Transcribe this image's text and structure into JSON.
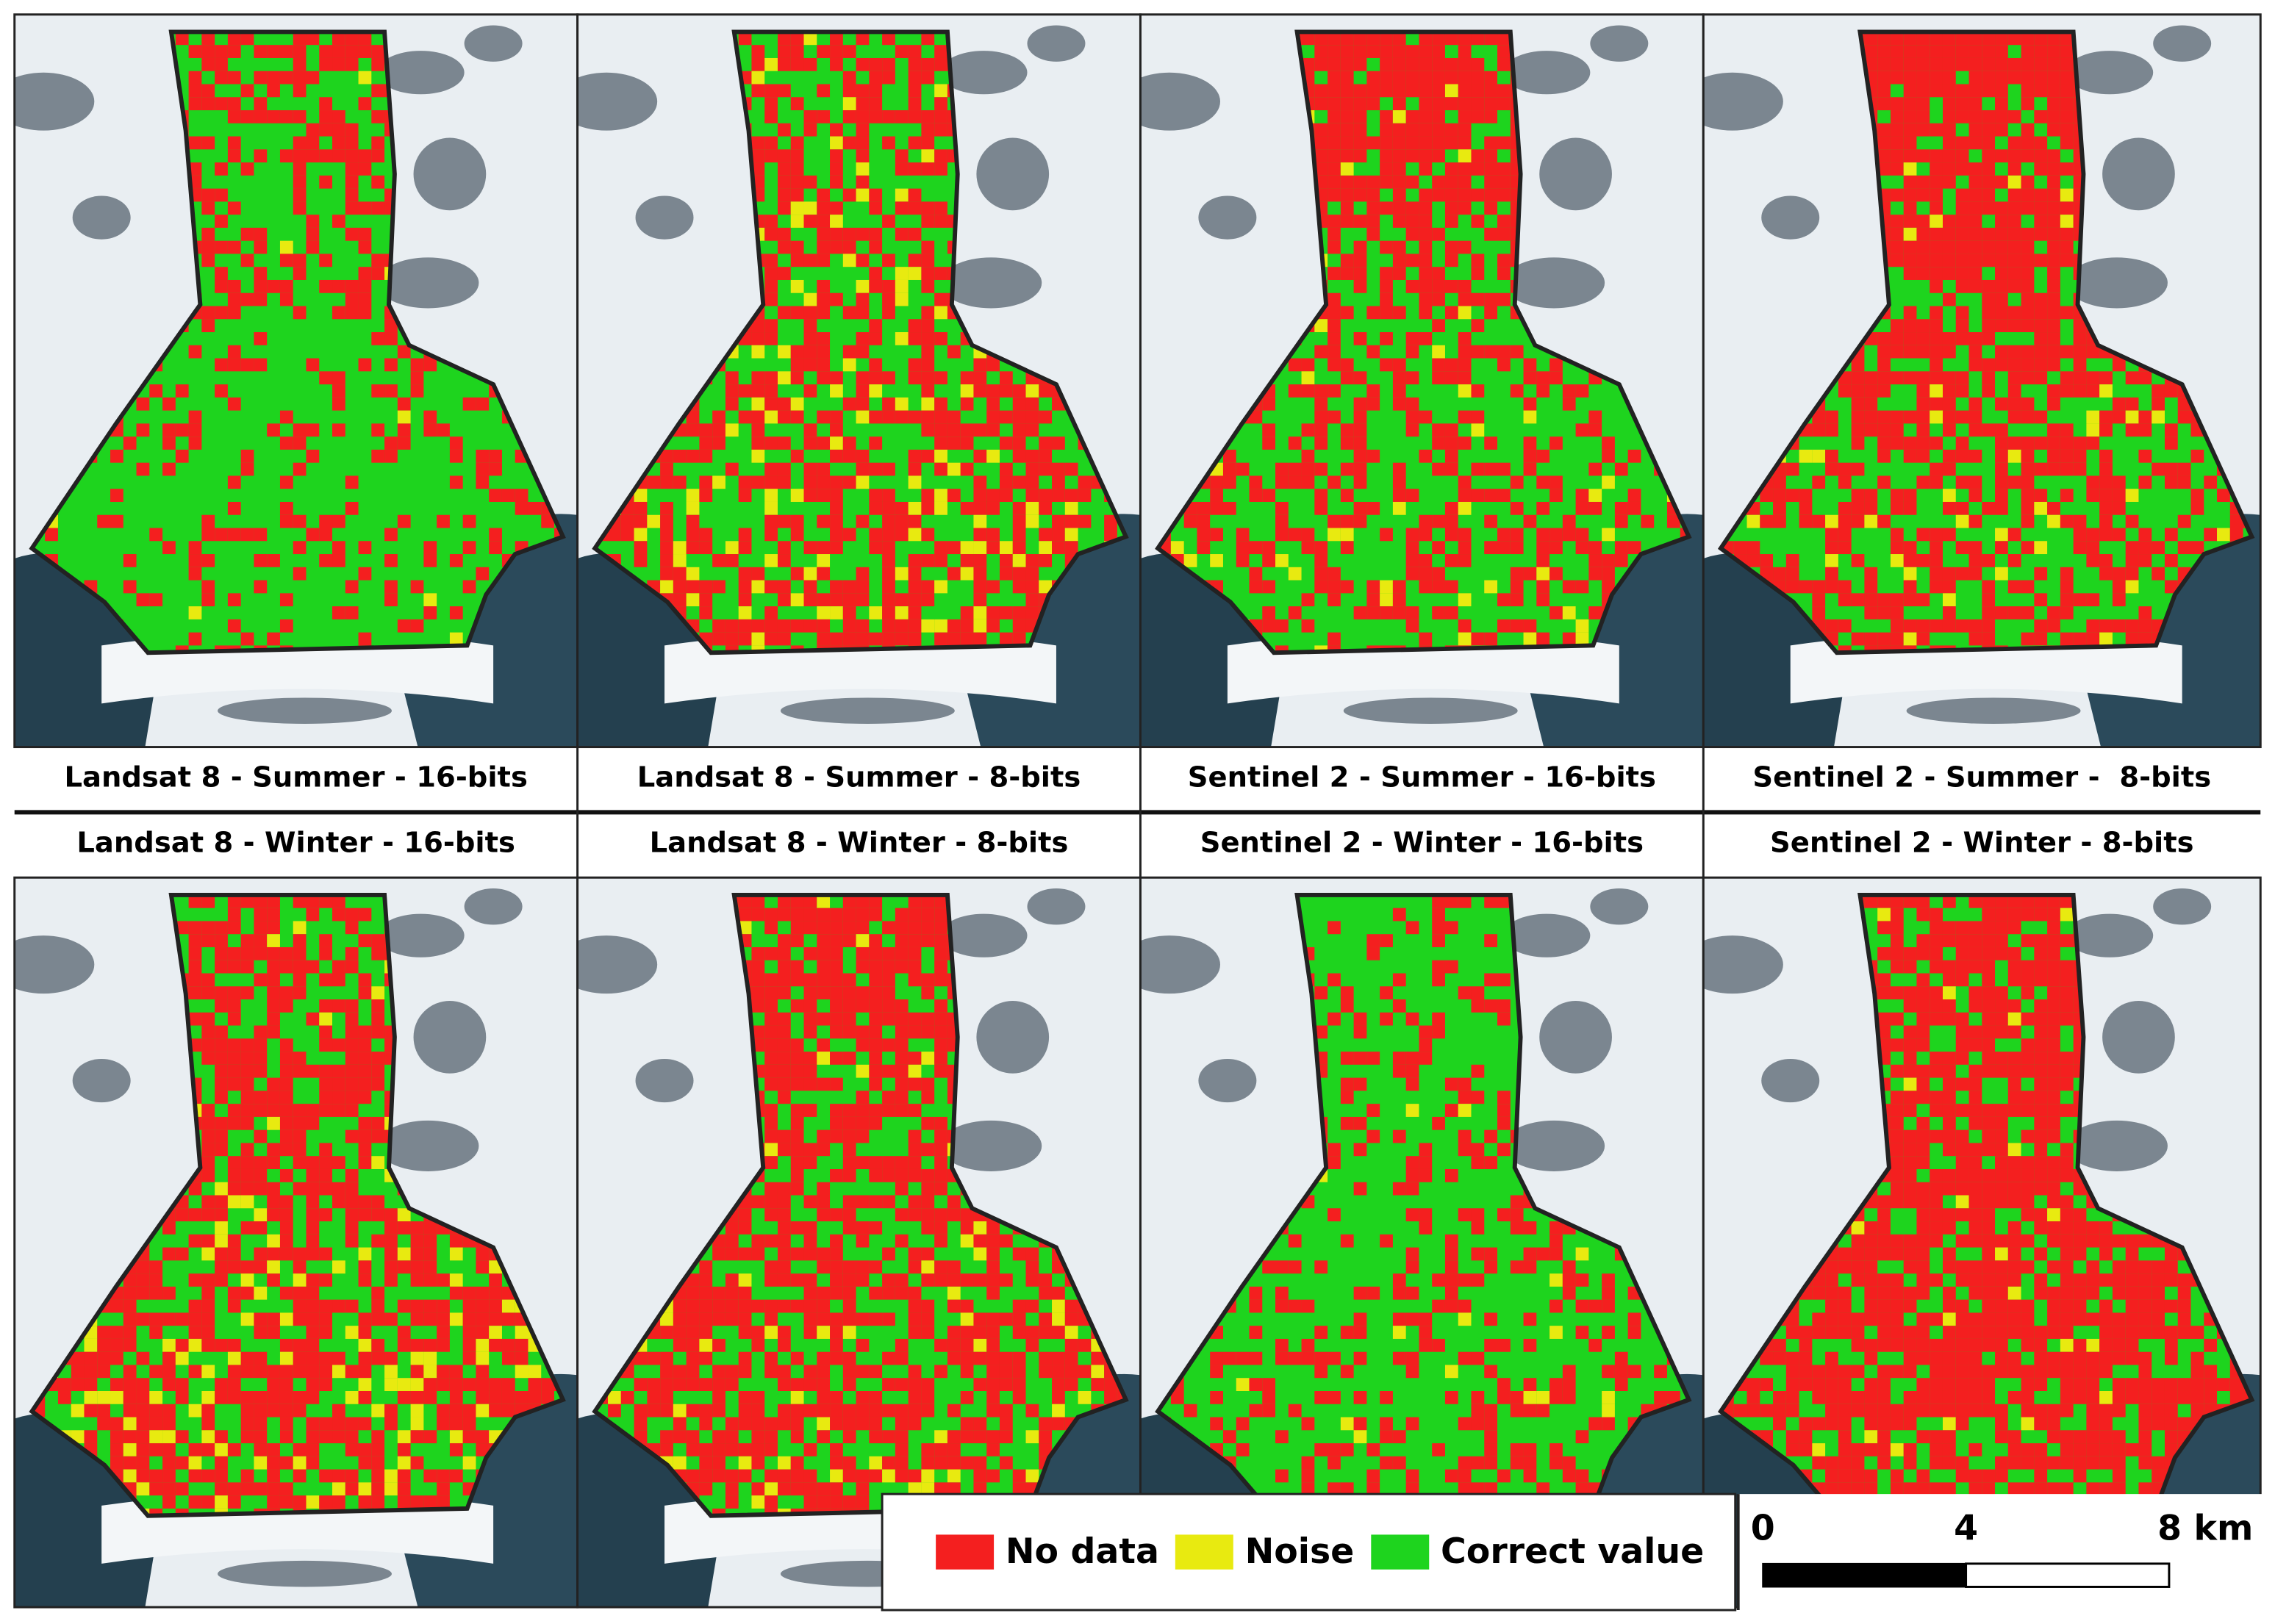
{
  "panels": [
    {
      "title": "Landsat 8 - Summer - 16-bits"
    },
    {
      "title": "Landsat 8 - Summer - 8-bits"
    },
    {
      "title": "Sentinel 2 - Summer - 16-bits"
    },
    {
      "title": "Sentinel 2 - Summer -  8-bits"
    },
    {
      "title": "Landsat 8 - Winter - 16-bits"
    },
    {
      "title": "Landsat 8 - Winter - 8-bits"
    },
    {
      "title": "Sentinel 2 - Winter - 16-bits"
    },
    {
      "title": "Sentinel 2 - Winter - 8-bits"
    }
  ],
  "legend": {
    "items": [
      {
        "label": "No data",
        "color": "#f41f1f"
      },
      {
        "label": "Noise",
        "color": "#e8ea10"
      },
      {
        "label": "Correct value",
        "color": "#1ed41e"
      }
    ]
  },
  "scale_bar": {
    "labels": [
      "0",
      "4",
      "8 km"
    ]
  }
}
